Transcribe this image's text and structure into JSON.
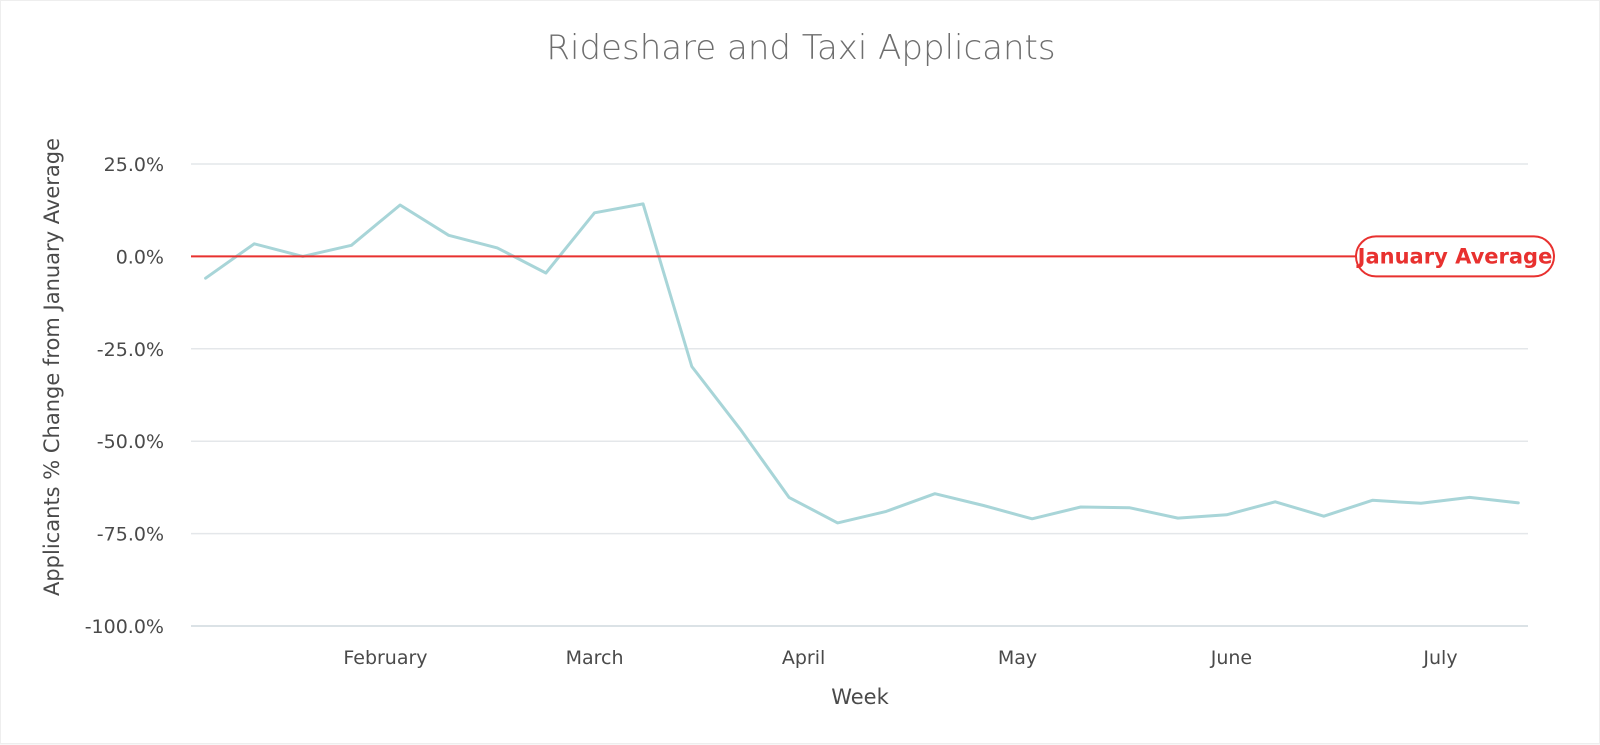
{
  "chart_data": {
    "type": "line",
    "title": "Rideshare and Taxi Applicants",
    "xlabel": "Week",
    "ylabel": "Applicants % Change from January Average",
    "ylim": [
      -100,
      25
    ],
    "yticks": [
      {
        "value": 25,
        "label": "25.0%"
      },
      {
        "value": 0,
        "label": "0.0%"
      },
      {
        "value": -25,
        "label": "-25.0%"
      },
      {
        "value": -50,
        "label": "-50.0%"
      },
      {
        "value": -75,
        "label": "-75.0%"
      },
      {
        "value": -100,
        "label": "-100.0%"
      }
    ],
    "x_range": [
      0,
      27.5
    ],
    "xticks": [
      {
        "value": 4,
        "label": "February"
      },
      {
        "value": 8.3,
        "label": "March"
      },
      {
        "value": 12.6,
        "label": "April"
      },
      {
        "value": 17,
        "label": "May"
      },
      {
        "value": 21.4,
        "label": "June"
      },
      {
        "value": 25.7,
        "label": "July"
      }
    ],
    "grid": true,
    "series": [
      {
        "color": "#a8d5d8",
        "x": [
          0.3,
          1.3,
          2.3,
          3.3,
          4.3,
          5.3,
          6.3,
          7.3,
          8.3,
          9.3,
          10.3,
          11.3,
          12.3,
          13.3,
          14.3,
          15.3,
          16.3,
          17.3,
          18.3,
          19.3,
          20.3,
          21.3,
          22.3,
          23.3,
          24.3,
          25.3,
          26.3,
          27.3
        ],
        "values": [
          -5.9,
          3.4,
          0.0,
          3.0,
          13.9,
          5.7,
          2.3,
          -4.5,
          11.8,
          14.2,
          -29.8,
          -46.8,
          -65.2,
          -72.1,
          -69.0,
          -64.2,
          -67.4,
          -71.0,
          -67.8,
          -68.0,
          -70.8,
          -69.9,
          -66.4,
          -70.3,
          -66.0,
          -66.8,
          -65.2,
          -66.7
        ]
      }
    ],
    "reference_line": {
      "value": 0,
      "label": "January Average",
      "color": "#e8312f"
    }
  }
}
